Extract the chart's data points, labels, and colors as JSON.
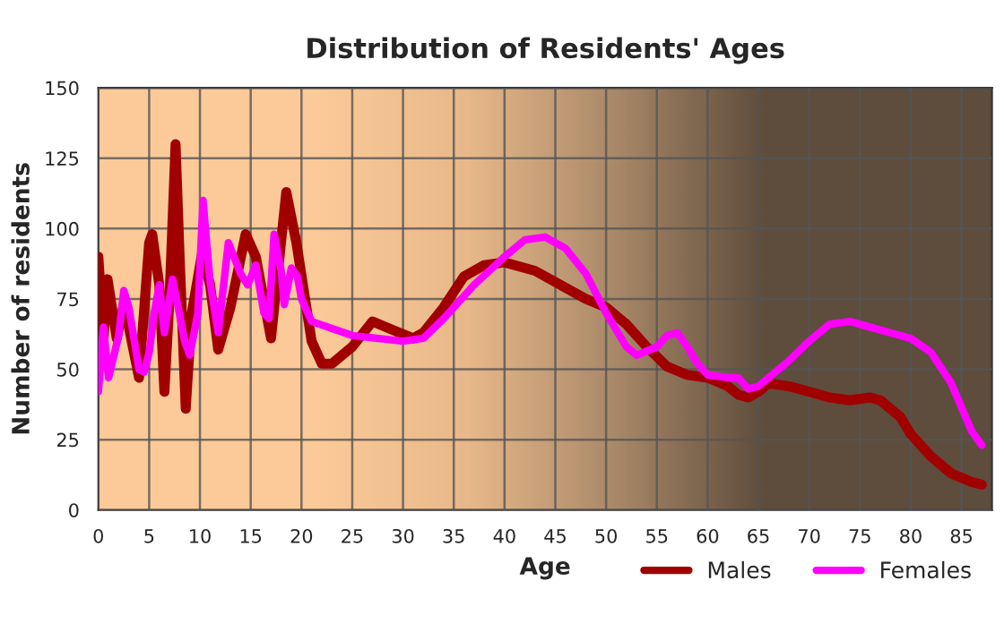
{
  "chart_data": {
    "type": "line",
    "title": "Distribution of Residents' Ages",
    "xlabel": "Age",
    "ylabel": "Number of residents",
    "xlim": [
      0,
      88
    ],
    "xticks": [
      0,
      5,
      10,
      15,
      20,
      25,
      30,
      35,
      40,
      45,
      50,
      55,
      60,
      65,
      70,
      75,
      80,
      85
    ],
    "ylim": [
      0,
      150
    ],
    "yticks": [
      0,
      25,
      50,
      75,
      100,
      125,
      150
    ],
    "grid": true,
    "legend": "bottom right",
    "marker": "none",
    "line_style": "solid",
    "series": [
      {
        "name": "Males",
        "color": "#a00000",
        "x": [
          0,
          0.5,
          0.9,
          1.8,
          2.5,
          3,
          4,
          5,
          5.3,
          6,
          6.5,
          7,
          7.6,
          8,
          8.6,
          9.2,
          10.2,
          11,
          11.8,
          13,
          14.5,
          15.5,
          17,
          18.5,
          19.5,
          21,
          22,
          23,
          25,
          27,
          29,
          31,
          32,
          34,
          36,
          38,
          40,
          43,
          46,
          48,
          50,
          52,
          54,
          56,
          58,
          60,
          62,
          63,
          64,
          65,
          66,
          68,
          70,
          72,
          74,
          76,
          77,
          79,
          80,
          82,
          84,
          86,
          87
        ],
        "values": [
          90,
          61,
          82,
          61,
          73,
          65,
          47,
          95,
          98,
          80,
          42,
          75,
          130,
          90,
          36,
          70,
          91,
          80,
          57,
          72,
          98,
          90,
          61,
          113,
          95,
          60,
          52,
          52,
          58,
          67,
          64,
          61,
          63,
          72,
          83,
          87,
          88,
          85,
          79,
          75,
          72,
          66,
          58,
          51,
          48,
          47,
          44,
          41,
          40,
          42,
          45,
          44,
          42,
          40,
          39,
          40,
          39,
          33,
          27,
          19,
          13,
          10,
          9
        ]
      },
      {
        "name": "Females",
        "color": "#ff00ff",
        "x": [
          0,
          0.5,
          1,
          2,
          2.5,
          3,
          4,
          4.5,
          5,
          5.5,
          6,
          6.5,
          7.3,
          7.8,
          8.5,
          9,
          9.8,
          10.3,
          11,
          11.8,
          12.8,
          14,
          14.7,
          15.5,
          16.3,
          16.8,
          17.3,
          18,
          18.3,
          19,
          19.6,
          20,
          21,
          25,
          30,
          32,
          34,
          37,
          40,
          42,
          44,
          46,
          48,
          50,
          52,
          53,
          55,
          56,
          57,
          58,
          59,
          60,
          62,
          63,
          64,
          65,
          66,
          68,
          70,
          72,
          74,
          76,
          78,
          80,
          82,
          84,
          86,
          87
        ],
        "values": [
          42,
          65,
          47,
          62,
          78,
          72,
          50,
          49,
          56,
          70,
          80,
          63,
          82,
          73,
          60,
          55,
          70,
          110,
          81,
          63,
          95,
          84,
          80,
          87,
          70,
          68,
          98,
          85,
          73,
          86,
          83,
          75,
          67,
          62,
          60,
          61,
          68,
          80,
          90,
          96,
          97,
          93,
          84,
          70,
          58,
          55,
          58,
          62,
          63,
          58,
          52,
          48,
          47,
          47,
          43,
          44,
          47,
          53,
          60,
          66,
          67,
          65,
          63,
          61,
          56,
          45,
          28,
          23
        ]
      }
    ]
  }
}
